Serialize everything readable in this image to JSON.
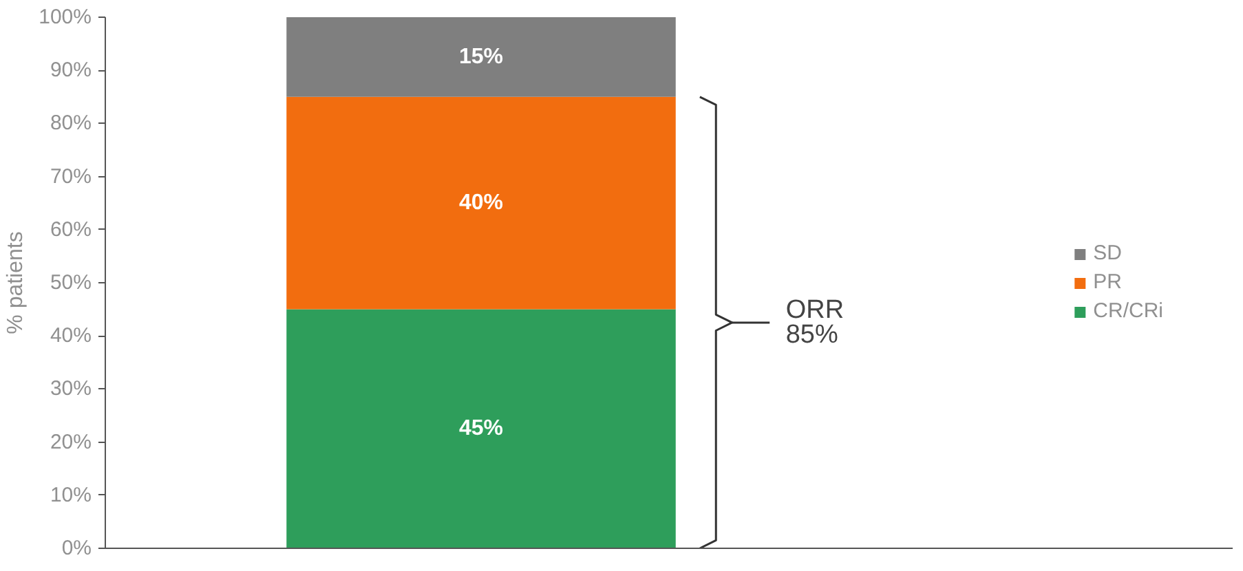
{
  "chart_data": {
    "type": "bar",
    "stacked": true,
    "categories": [
      null
    ],
    "ylabel": "% patients",
    "ylim": [
      0,
      100
    ],
    "yticks": [
      {
        "value": 0,
        "label": "0%"
      },
      {
        "value": 10,
        "label": "10%"
      },
      {
        "value": 20,
        "label": "20%"
      },
      {
        "value": 30,
        "label": "30%"
      },
      {
        "value": 40,
        "label": "40%"
      },
      {
        "value": 50,
        "label": "50%"
      },
      {
        "value": 60,
        "label": "60%"
      },
      {
        "value": 70,
        "label": "70%"
      },
      {
        "value": 80,
        "label": "80%"
      },
      {
        "value": 90,
        "label": "90%"
      },
      {
        "value": 100,
        "label": "100%"
      }
    ],
    "series": [
      {
        "name": "CR/CRi",
        "color": "#2e9e5b",
        "values": [
          45
        ],
        "value_labels": [
          "45%"
        ]
      },
      {
        "name": "PR",
        "color": "#f26d0f",
        "values": [
          40
        ],
        "value_labels": [
          "40%"
        ]
      },
      {
        "name": "SD",
        "color": "#7f7f7f",
        "values": [
          15
        ],
        "value_labels": [
          "15%"
        ]
      }
    ],
    "annotations": [
      "ORR\n85%"
    ],
    "legend": "right",
    "grid": false
  }
}
